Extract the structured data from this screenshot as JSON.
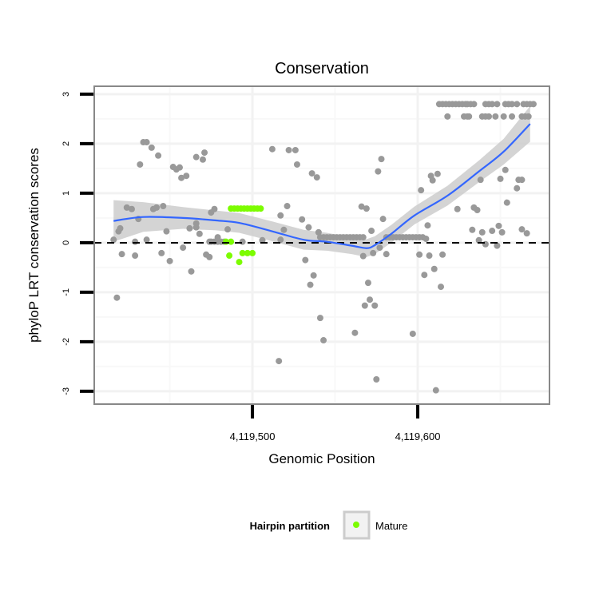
{
  "chart_data": {
    "type": "scatter",
    "title": "Conservation",
    "xlabel": "Genomic Position",
    "ylabel": "phyloP LRT conservation scores",
    "xlim": [
      4119404.3,
      4119679.7
    ],
    "ylim": [
      -3.26,
      3.16
    ],
    "xticks": [
      4119500,
      4119600
    ],
    "xtick_labels": [
      "4,119,500",
      "4,119,600"
    ],
    "yticks": [
      -3,
      -2,
      -1,
      0,
      1,
      2,
      3
    ],
    "ytick_labels": [
      "-3",
      "-2",
      "-1",
      "0",
      "1",
      "2",
      "3"
    ],
    "grid": true,
    "reference_line": {
      "y": 0,
      "style": "dashed",
      "color": "#000000"
    },
    "colors": {
      "other": "#999999",
      "mature": "#7cfc00",
      "smooth": "#3366ff",
      "band": "#cccccc"
    },
    "legend": {
      "title": "Hairpin partition",
      "entries": [
        "Mature"
      ],
      "placement": "bottom"
    },
    "series": [
      {
        "name": "Other",
        "points": [
          [
            4119418,
            -1.11
          ],
          [
            4119416,
            0.06
          ],
          [
            4119419,
            0.23
          ],
          [
            4119420,
            0.29
          ],
          [
            4119421,
            -0.23
          ],
          [
            4119424,
            0.71
          ],
          [
            4119427,
            0.68
          ],
          [
            4119429,
            0.02
          ],
          [
            4119431,
            0.48
          ],
          [
            4119429,
            -0.26
          ],
          [
            4119432,
            1.58
          ],
          [
            4119434,
            2.03
          ],
          [
            4119436,
            2.03
          ],
          [
            4119439,
            1.92
          ],
          [
            4119436,
            0.06
          ],
          [
            4119440,
            0.68
          ],
          [
            4119442,
            0.71
          ],
          [
            4119443,
            1.76
          ],
          [
            4119445,
            -0.21
          ],
          [
            4119446,
            0.74
          ],
          [
            4119448,
            0.23
          ],
          [
            4119450,
            -0.37
          ],
          [
            4119452,
            1.53
          ],
          [
            4119454,
            1.48
          ],
          [
            4119456,
            1.52
          ],
          [
            4119457,
            1.31
          ],
          [
            4119460,
            1.35
          ],
          [
            4119458,
            -0.1
          ],
          [
            4119462,
            0.29
          ],
          [
            4119466,
            1.73
          ],
          [
            4119471,
            1.82
          ],
          [
            4119470,
            1.68
          ],
          [
            4119466,
            0.31
          ],
          [
            4119468,
            0.18
          ],
          [
            4119472,
            -0.24
          ],
          [
            4119474,
            -0.29
          ],
          [
            4119463,
            -0.58
          ],
          [
            4119474,
            0.02
          ],
          [
            4119475,
            0.61
          ],
          [
            4119477,
            0.68
          ],
          [
            4119479,
            0.11
          ],
          [
            4119466,
            0.39
          ],
          [
            4119485,
            0.27
          ],
          [
            4119494,
            0.02
          ],
          [
            4119506,
            0.05
          ],
          [
            4119512,
            1.89
          ],
          [
            4119516,
            -2.39
          ],
          [
            4119517,
            0.55
          ],
          [
            4119519,
            0.26
          ],
          [
            4119517,
            0.06
          ],
          [
            4119521,
            0.74
          ],
          [
            4119522,
            1.87
          ],
          [
            4119526,
            1.87
          ],
          [
            4119527,
            1.58
          ],
          [
            4119530,
            0.47
          ],
          [
            4119532,
            -0.35
          ],
          [
            4119534,
            0.31
          ],
          [
            4119535,
            -0.85
          ],
          [
            4119537,
            -0.66
          ],
          [
            4119540,
            0.21
          ],
          [
            4119536,
            1.4
          ],
          [
            4119539,
            1.32
          ],
          [
            4119541,
            -1.52
          ],
          [
            4119543,
            -1.97
          ],
          [
            4119475,
            0.02
          ],
          [
            4119477,
            0.02
          ],
          [
            4119479,
            0.02
          ],
          [
            4119481,
            0.02
          ],
          [
            4119483,
            0.02
          ],
          [
            4119541,
            0.11
          ],
          [
            4119543,
            0.11
          ],
          [
            4119545,
            0.11
          ],
          [
            4119547,
            0.11
          ],
          [
            4119549,
            0.11
          ],
          [
            4119551,
            0.11
          ],
          [
            4119553,
            0.11
          ],
          [
            4119555,
            0.11
          ],
          [
            4119557,
            0.11
          ],
          [
            4119559,
            0.11
          ],
          [
            4119561,
            0.11
          ],
          [
            4119563,
            0.11
          ],
          [
            4119565,
            0.11
          ],
          [
            4119567,
            0.11
          ],
          [
            4119581,
            0.11
          ],
          [
            4119583,
            0.11
          ],
          [
            4119585,
            0.11
          ],
          [
            4119587,
            0.11
          ],
          [
            4119589,
            0.11
          ],
          [
            4119591,
            0.11
          ],
          [
            4119593,
            0.11
          ],
          [
            4119595,
            0.11
          ],
          [
            4119597,
            0.11
          ],
          [
            4119599,
            0.11
          ],
          [
            4119601,
            0.11
          ],
          [
            4119603,
            0.11
          ],
          [
            4119570,
            -0.81
          ],
          [
            4119571,
            -1.15
          ],
          [
            4119568,
            -1.27
          ],
          [
            4119574,
            -1.27
          ],
          [
            4119562,
            -1.82
          ],
          [
            4119575,
            -2.76
          ],
          [
            4119578,
            1.69
          ],
          [
            4119576,
            1.44
          ],
          [
            4119566,
            0.73
          ],
          [
            4119569,
            0.69
          ],
          [
            4119572,
            0.24
          ],
          [
            4119579,
            0.48
          ],
          [
            4119567,
            -0.27
          ],
          [
            4119573,
            -0.21
          ],
          [
            4119577,
            -0.1
          ],
          [
            4119581,
            -0.23
          ],
          [
            4119602,
            1.06
          ],
          [
            4119608,
            1.35
          ],
          [
            4119612,
            1.39
          ],
          [
            4119609,
            1.26
          ],
          [
            4119606,
            0.35
          ],
          [
            4119605,
            0.08
          ],
          [
            4119601,
            -0.24
          ],
          [
            4119607,
            -0.26
          ],
          [
            4119615,
            -0.24
          ],
          [
            4119610,
            -0.53
          ],
          [
            4119604,
            -0.65
          ],
          [
            4119614,
            -0.89
          ],
          [
            4119597,
            -1.84
          ],
          [
            4119611,
            -2.98
          ],
          [
            4119624,
            0.68
          ],
          [
            4119634,
            0.71
          ],
          [
            4119636,
            0.66
          ],
          [
            4119638,
            1.27
          ],
          [
            4119633,
            0.26
          ],
          [
            4119639,
            0.21
          ],
          [
            4119637,
            0.05
          ],
          [
            4119641,
            -0.03
          ],
          [
            4119645,
            0.24
          ],
          [
            4119648,
            -0.06
          ],
          [
            4119649,
            0.34
          ],
          [
            4119651,
            0.21
          ],
          [
            4119650,
            1.29
          ],
          [
            4119653,
            1.47
          ],
          [
            4119654,
            0.81
          ],
          [
            4119660,
            1.1
          ],
          [
            4119661,
            1.27
          ],
          [
            4119663,
            1.27
          ],
          [
            4119663,
            0.27
          ],
          [
            4119666,
            0.19
          ],
          [
            4119613,
            2.8
          ],
          [
            4119615,
            2.8
          ],
          [
            4119617,
            2.8
          ],
          [
            4119619,
            2.8
          ],
          [
            4119621,
            2.8
          ],
          [
            4119623,
            2.8
          ],
          [
            4119625,
            2.8
          ],
          [
            4119627,
            2.8
          ],
          [
            4119629,
            2.8
          ],
          [
            4119630,
            2.8
          ],
          [
            4119632,
            2.8
          ],
          [
            4119634,
            2.8
          ],
          [
            4119641,
            2.8
          ],
          [
            4119643,
            2.8
          ],
          [
            4119645,
            2.8
          ],
          [
            4119648,
            2.8
          ],
          [
            4119653,
            2.8
          ],
          [
            4119655,
            2.8
          ],
          [
            4119657,
            2.8
          ],
          [
            4119660,
            2.8
          ],
          [
            4119664,
            2.8
          ],
          [
            4119666,
            2.8
          ],
          [
            4119668,
            2.8
          ],
          [
            4119670,
            2.8
          ],
          [
            4119618,
            2.55
          ],
          [
            4119628,
            2.55
          ],
          [
            4119630,
            2.55
          ],
          [
            4119631,
            2.55
          ],
          [
            4119639,
            2.55
          ],
          [
            4119641,
            2.55
          ],
          [
            4119643,
            2.55
          ],
          [
            4119647,
            2.55
          ],
          [
            4119652,
            2.55
          ],
          [
            4119657,
            2.55
          ],
          [
            4119663,
            2.55
          ],
          [
            4119665,
            2.55
          ],
          [
            4119667,
            2.55
          ]
        ]
      },
      {
        "name": "Mature",
        "points": [
          [
            4119487,
            0.69
          ],
          [
            4119489,
            0.69
          ],
          [
            4119491,
            0.69
          ],
          [
            4119493,
            0.69
          ],
          [
            4119495,
            0.69
          ],
          [
            4119497,
            0.69
          ],
          [
            4119499,
            0.69
          ],
          [
            4119501,
            0.69
          ],
          [
            4119503,
            0.69
          ],
          [
            4119505,
            0.69
          ],
          [
            4119484,
            0.02
          ],
          [
            4119487,
            0.02
          ],
          [
            4119486,
            -0.26
          ],
          [
            4119492,
            -0.39
          ],
          [
            4119494,
            -0.21
          ],
          [
            4119497,
            -0.21
          ],
          [
            4119500,
            -0.21
          ]
        ]
      }
    ],
    "smooth": {
      "x": [
        4119416,
        4119434,
        4119458,
        4119478,
        4119492,
        4119512,
        4119531,
        4119545,
        4119560,
        4119569,
        4119574,
        4119584,
        4119598,
        4119618,
        4119637,
        4119652,
        4119668
      ],
      "y": [
        0.44,
        0.52,
        0.5,
        0.45,
        0.4,
        0.23,
        0.06,
        0.02,
        -0.06,
        -0.11,
        -0.05,
        0.18,
        0.55,
        0.95,
        1.44,
        1.84,
        2.4
      ],
      "se": [
        0.42,
        0.3,
        0.22,
        0.2,
        0.2,
        0.2,
        0.2,
        0.18,
        0.17,
        0.18,
        0.18,
        0.18,
        0.18,
        0.2,
        0.22,
        0.26,
        0.36
      ]
    }
  }
}
